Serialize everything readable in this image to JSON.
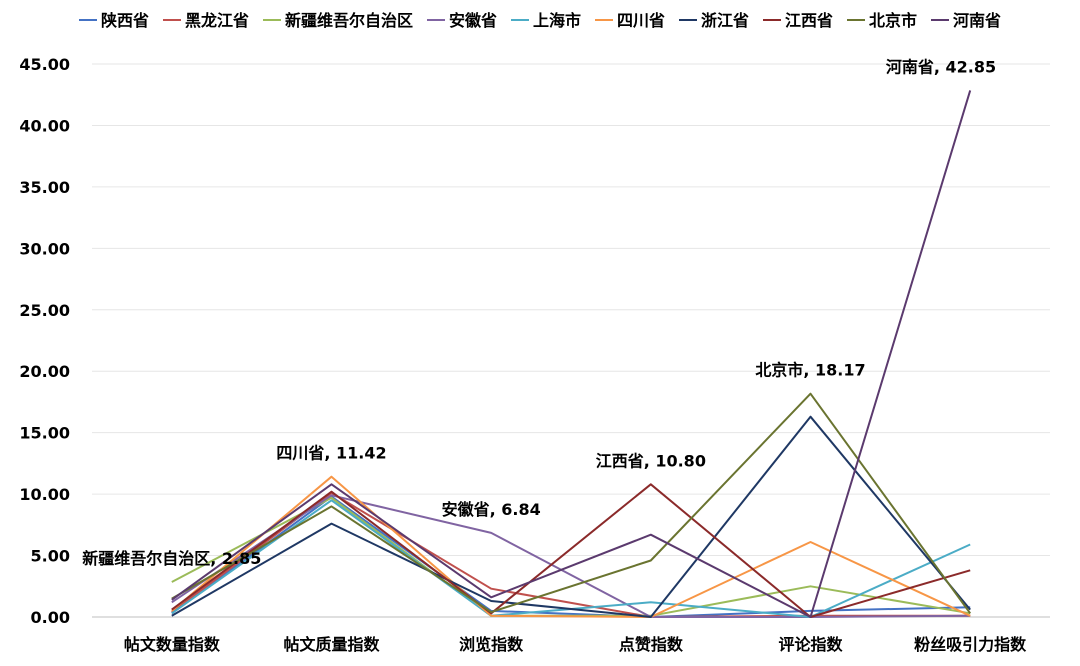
{
  "chart_data": {
    "type": "line",
    "title": "",
    "xlabel": "",
    "ylabel": "",
    "ylim": [
      0,
      45
    ],
    "y_ticks": [
      "0.00",
      "5.00",
      "10.00",
      "15.00",
      "20.00",
      "25.00",
      "30.00",
      "35.00",
      "40.00",
      "45.00"
    ],
    "grid": true,
    "legend_position": "top",
    "categories": [
      "帖文数量指数",
      "帖文质量指数",
      "浏览指数",
      "点赞指数",
      "评论指数",
      "粉丝吸引力指数"
    ],
    "series": [
      {
        "name": "陕西省",
        "color": "#4472c4",
        "values": [
          0.3,
          9.8,
          0.5,
          0.0,
          0.5,
          0.8
        ]
      },
      {
        "name": "黑龙江省",
        "color": "#c0504d",
        "values": [
          0.4,
          10.1,
          2.3,
          0.0,
          0.1,
          0.1
        ]
      },
      {
        "name": "新疆维吾尔自治区",
        "color": "#9bbb59",
        "values": [
          2.85,
          9.7,
          0.1,
          0.1,
          2.5,
          0.3
        ]
      },
      {
        "name": "安徽省",
        "color": "#8064a2",
        "values": [
          1.2,
          9.9,
          6.84,
          0.0,
          0.0,
          0.1
        ]
      },
      {
        "name": "上海市",
        "color": "#4bacc6",
        "values": [
          0.3,
          9.5,
          0.1,
          1.2,
          0.0,
          5.9
        ]
      },
      {
        "name": "四川省",
        "color": "#f79646",
        "values": [
          0.5,
          11.42,
          0.1,
          0.0,
          6.1,
          0.1
        ]
      },
      {
        "name": "浙江省",
        "color": "#1f3864",
        "values": [
          0.1,
          7.6,
          1.3,
          0.0,
          16.3,
          0.6
        ]
      },
      {
        "name": "江西省",
        "color": "#8b2a2a",
        "values": [
          0.6,
          10.2,
          0.3,
          10.8,
          0.0,
          3.8
        ]
      },
      {
        "name": "北京市",
        "color": "#6a7430",
        "values": [
          1.5,
          9.0,
          0.4,
          4.6,
          18.17,
          0.3
        ]
      },
      {
        "name": "河南省",
        "color": "#5b3a6e",
        "values": [
          1.4,
          10.8,
          1.6,
          6.7,
          0.0,
          42.85
        ]
      }
    ],
    "annotations": [
      {
        "series": 2,
        "point": 0,
        "text": "新疆维吾尔自治区, 2.85"
      },
      {
        "series": 5,
        "point": 1,
        "text": "四川省, 11.42"
      },
      {
        "series": 3,
        "point": 2,
        "text": "安徽省, 6.84"
      },
      {
        "series": 7,
        "point": 3,
        "text": "江西省, 10.80"
      },
      {
        "series": 8,
        "point": 4,
        "text": "北京市, 18.17"
      },
      {
        "series": 9,
        "point": 5,
        "text": "河南省, 42.85"
      }
    ]
  }
}
